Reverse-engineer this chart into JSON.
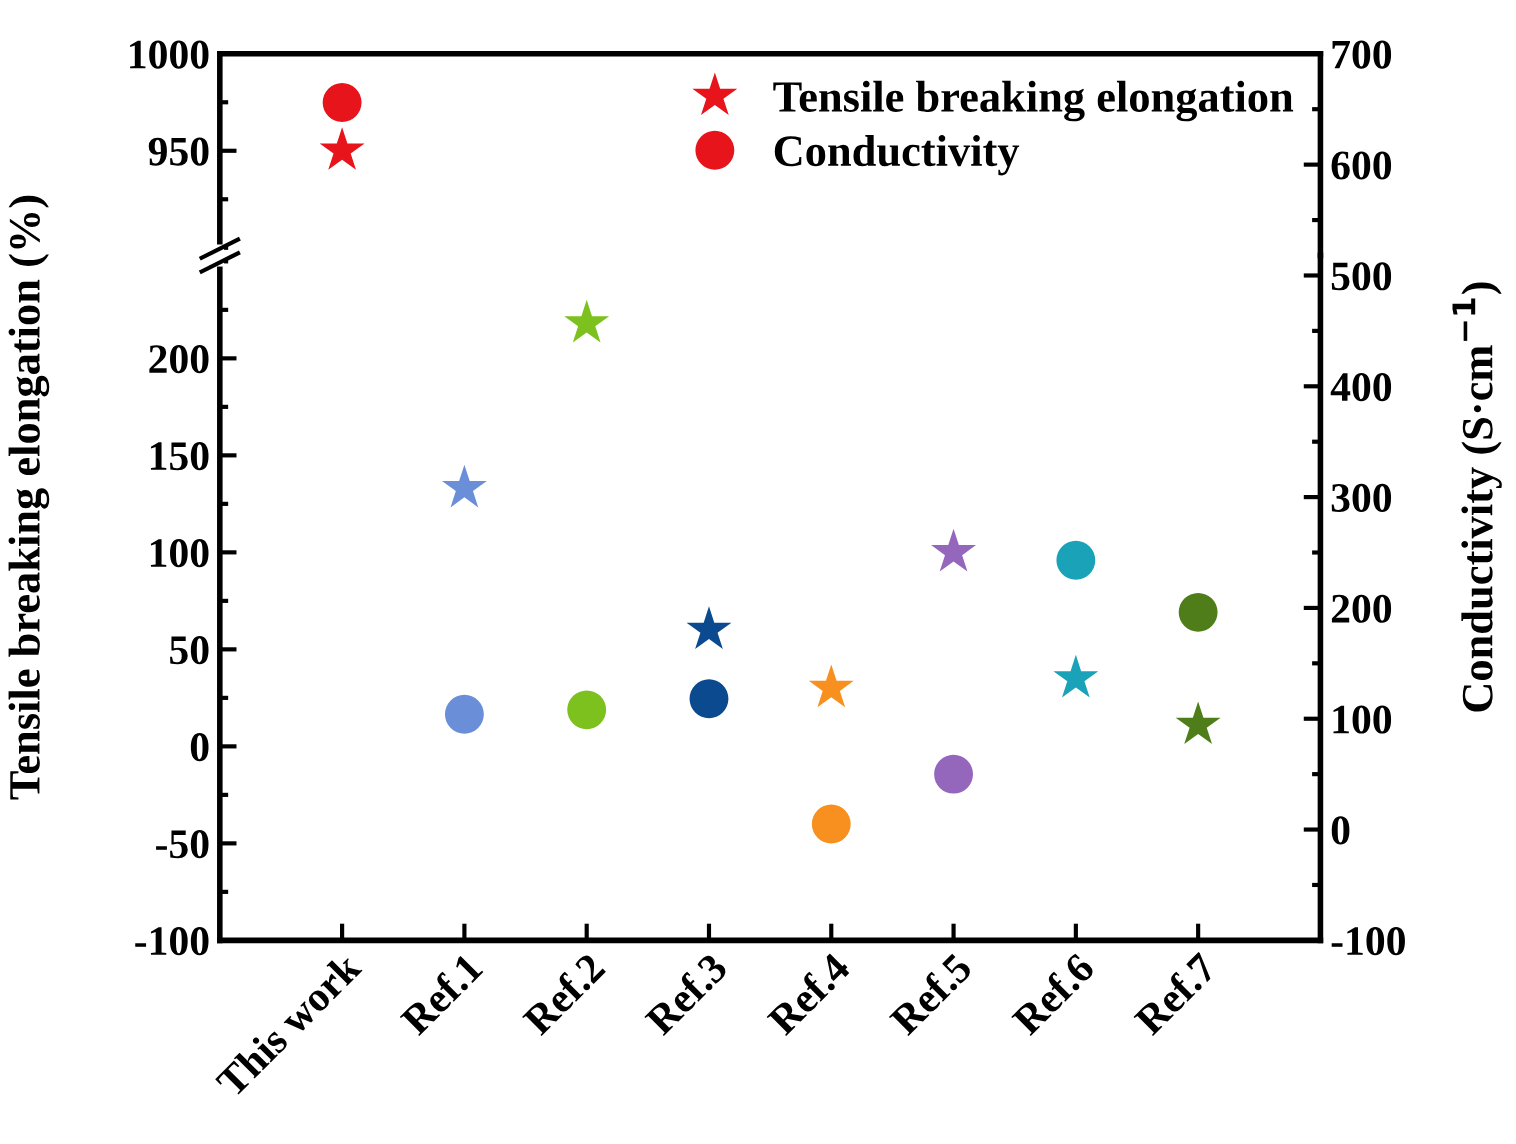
{
  "chart_data": [
    {
      "type": "scatter",
      "categories": [
        null,
        null,
        null,
        null,
        null,
        null,
        null,
        null
      ],
      "ylim": [
        896,
        1000
      ],
      "yticks": [
        950,
        1000
      ],
      "y2lim": [
        518,
        700
      ],
      "y2ticks": [
        600,
        700
      ],
      "tick_labels": "y",
      "legend": "top right",
      "grid": false,
      "series": [
        {
          "name": "Tensile breaking elongation",
          "color": "#e8141b",
          "marker": "star",
          "colors": [
            "#e8141b",
            "#6a8fd8",
            "#7cc11e",
            "#0c4a8f",
            "#f7901e",
            "#9467bd",
            "#1aa3b8",
            "#4f7d1a"
          ],
          "values": [
            950,
            null,
            null,
            null,
            null,
            null,
            null,
            null
          ]
        },
        {
          "name": "Conductivity",
          "color": "#e8141b",
          "marker": "circle",
          "axis": "y2",
          "colors": [
            "#e8141b",
            "#6a8fd8",
            "#7cc11e",
            "#0c4a8f",
            "#f7901e",
            "#9467bd",
            "#1aa3b8",
            "#4f7d1a"
          ],
          "values": [
            656,
            null,
            null,
            null,
            null,
            null,
            null,
            null
          ]
        }
      ]
    },
    {
      "type": "scatter",
      "categories": [
        "This work",
        "Ref.1",
        "Ref.2",
        "Ref.3",
        "Ref.4",
        "Ref.5",
        "Ref.6",
        "Ref.7"
      ],
      "ylim": [
        -100,
        253
      ],
      "yticks": [
        -100,
        -50,
        0,
        50,
        100,
        150,
        200
      ],
      "y2lim": [
        -100,
        518
      ],
      "y2ticks": [
        -100,
        0,
        100,
        200,
        300,
        400,
        500
      ],
      "ylabel": "Tensile breaking elongation (%)",
      "y2label": "Conductivity (S·cm$^{−1}$)",
      "grid": false,
      "series": [
        {
          "color": "#6a8fd8",
          "marker": "star",
          "colors": [
            "#e8141b",
            "#6a8fd8",
            "#7cc11e",
            "#0c4a8f",
            "#f7901e",
            "#9467bd",
            "#1aa3b8",
            "#4f7d1a"
          ],
          "values": [
            null,
            133,
            218,
            60,
            30,
            100,
            35,
            11
          ]
        },
        {
          "color": "#6a8fd8",
          "marker": "circle",
          "axis": "y2",
          "colors": [
            "#e8141b",
            "#6a8fd8",
            "#7cc11e",
            "#0c4a8f",
            "#f7901e",
            "#9467bd",
            "#1aa3b8",
            "#4f7d1a"
          ],
          "values": [
            null,
            104,
            108,
            118,
            5,
            50,
            243,
            196
          ]
        }
      ]
    }
  ]
}
